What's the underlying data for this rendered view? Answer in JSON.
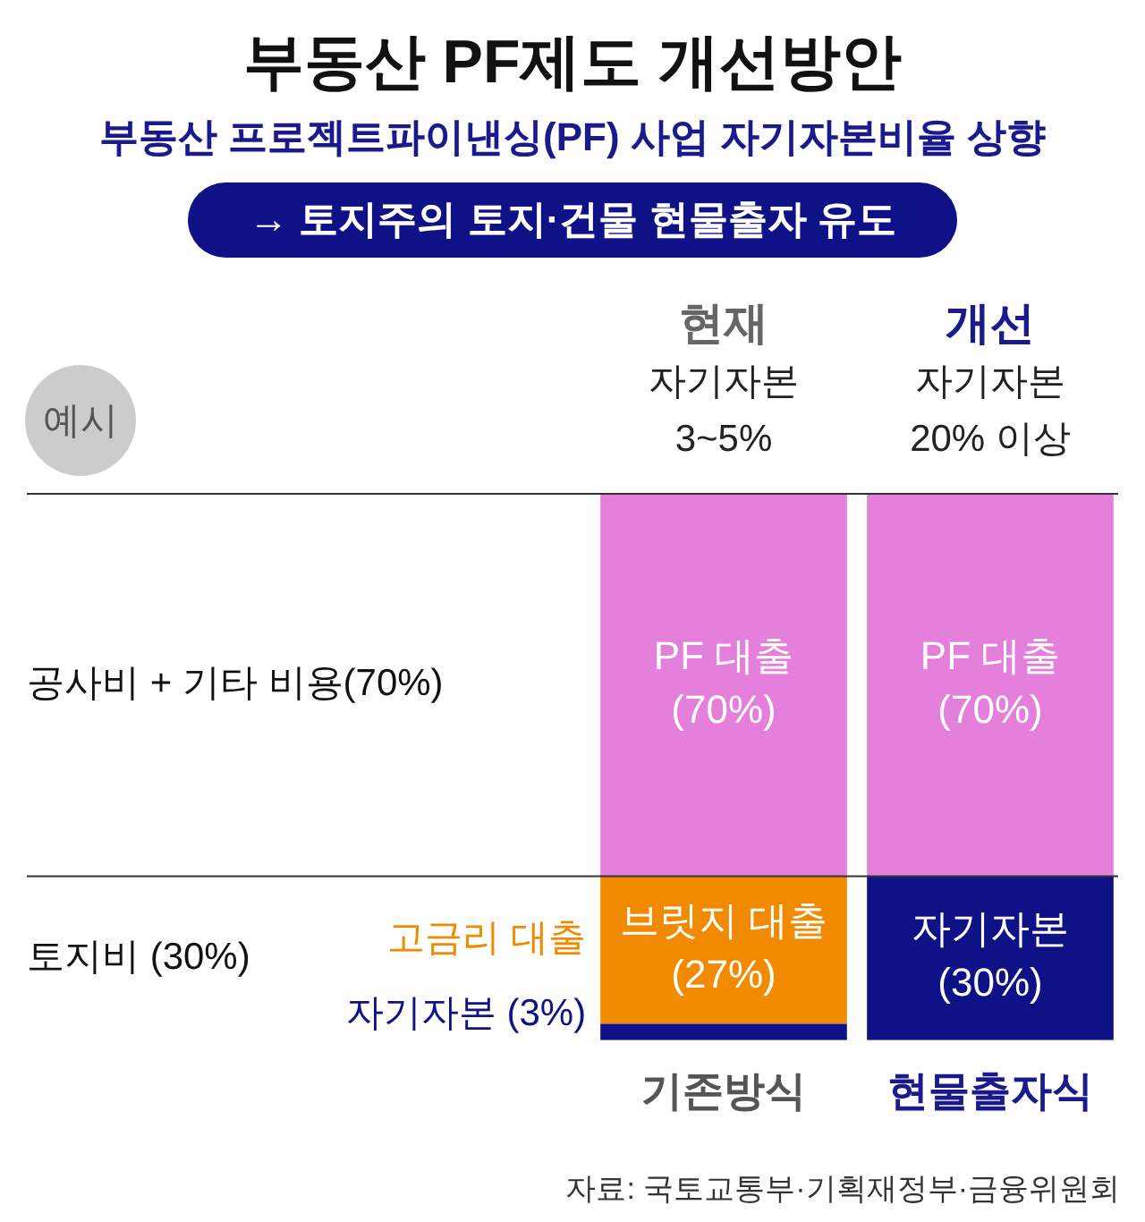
{
  "chart_data": {
    "type": "bar",
    "title": "부동산 PF제도 개선방안",
    "subtitle": "부동산 프로젝트파이낸싱(PF) 사업 자기자본비율 상향",
    "categories": [
      "기존방식",
      "현물출자식"
    ],
    "stacked": true,
    "ylim": [
      0,
      100
    ],
    "tick_labels": "x",
    "legend": false,
    "series": [
      {
        "name": "자기자본 (3%)",
        "color": "#0f1287",
        "values": [
          3,
          30
        ],
        "value_labels": [
          null,
          "자기자본\n(30%)"
        ]
      },
      {
        "name": "고금리 대출",
        "color": "#f28a00",
        "values": [
          27,
          null
        ],
        "value_labels": [
          "브릿지 대출\n(27%)",
          null
        ]
      },
      {
        "color": "#e57fdc",
        "values": [
          70,
          70
        ],
        "value_labels": [
          "PF 대출\n(70%)",
          "PF 대출\n(70%)"
        ]
      }
    ],
    "ref_lines": [
      {
        "axis": "y",
        "value": 100
      },
      {
        "axis": "y",
        "value": 30
      }
    ],
    "annotations": [
      "→ 토지주의 토지·건물 현물출자 유도",
      "예시",
      "현재\n자기자본\n3~5%",
      "개선\n자기자본\n20% 이상",
      "자료: 국토교통부·기획재정부·금융위원회",
      "공사비 + 기타 비용(70%)",
      "토지비 (30%)"
    ]
  }
}
